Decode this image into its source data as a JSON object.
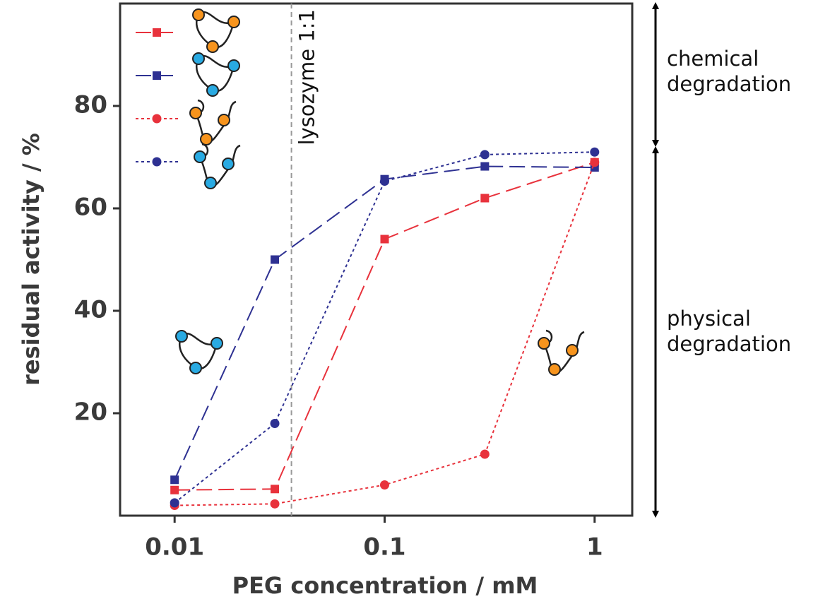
{
  "chart_data": {
    "type": "line",
    "x_label": "PEG concentration / mM",
    "y_label": "residual activity / %",
    "x": [
      0.01,
      0.03,
      0.1,
      0.3,
      1
    ],
    "log_x": true,
    "xlim": [
      0.0055,
      1.51
    ],
    "xticks": [
      0.01,
      0.1,
      1
    ],
    "ylim": [
      0,
      100
    ],
    "yticks": [
      20,
      40,
      60,
      80
    ],
    "series": [
      {
        "color": "#e8323c",
        "marker": "square",
        "dash": "long",
        "values": [
          5,
          5.2,
          54,
          62,
          69
        ]
      },
      {
        "color": "#2e3192",
        "marker": "square",
        "dash": "long",
        "values": [
          7,
          50,
          65.7,
          68.2,
          68
        ]
      },
      {
        "color": "#e8323c",
        "marker": "circle",
        "dash": "short",
        "values": [
          2,
          2.3,
          6,
          12,
          69
        ]
      },
      {
        "color": "#2e3192",
        "marker": "circle",
        "dash": "short",
        "values": [
          2.5,
          18,
          65.3,
          70.5,
          71
        ]
      }
    ],
    "vline": {
      "x": 0.036,
      "text": "lysozyme 1:1"
    },
    "side_notes": [
      [
        "chemical",
        "degradation"
      ],
      [
        "physical",
        "degradation"
      ]
    ]
  }
}
